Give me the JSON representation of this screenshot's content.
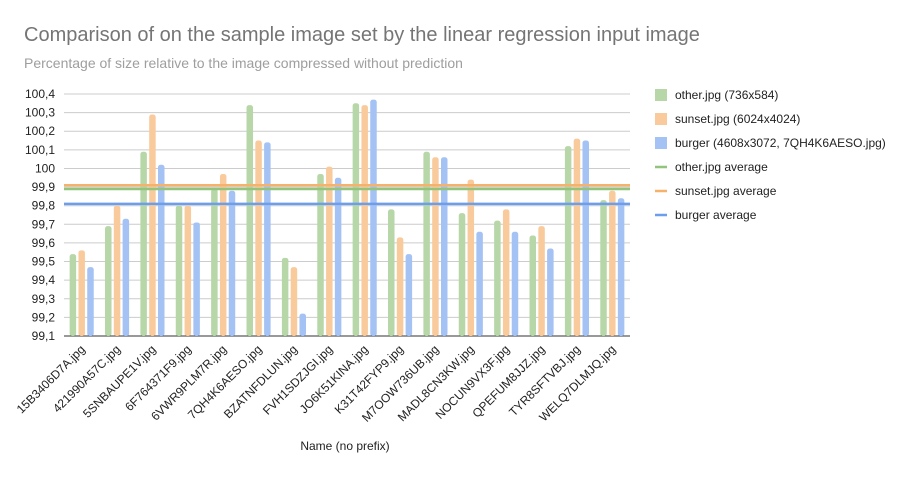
{
  "chart_data": {
    "type": "bar",
    "title": "Comparison of on the sample image set by the linear regression input image",
    "subtitle": "Percentage of size relative to the image compressed without prediction",
    "xlabel": "Name (no prefix)",
    "ylabel": "",
    "ylim": [
      99.1,
      100.4
    ],
    "yticks": [
      "99,1",
      "99,2",
      "99,3",
      "99,4",
      "99,5",
      "99,6",
      "99,7",
      "99,8",
      "99,9",
      "100",
      "100,1",
      "100,2",
      "100,3",
      "100,4"
    ],
    "grid": true,
    "legend_position": "right",
    "categories": [
      "15B3406D7A.jpg",
      "421990A57C.jpg",
      "5SNBAUPE1V.jpg",
      "6F764371F9.jpg",
      "6VWR9PLM7R.jpg",
      "7QH4K6AESO.jpg",
      "BZATNFDLUN.jpg",
      "FVH1SDZJGI.jpg",
      "JO6K51KINA.jpg",
      "K31T42FYP9.jpg",
      "M7OOW736UB.jpg",
      "MADL8CN3KW.jpg",
      "NOCUN9VX3F.jpg",
      "QPEFUM8JJZ.jpg",
      "TYR8SFTVBJ.jpg",
      "WELQ7DLMJQ.jpg"
    ],
    "series": [
      {
        "name": "other.jpg (736x584)",
        "color": "#b7d7a8",
        "values": [
          99.54,
          99.69,
          100.09,
          99.8,
          99.89,
          100.34,
          99.52,
          99.97,
          100.35,
          99.78,
          100.09,
          99.76,
          99.72,
          99.64,
          100.12,
          99.83
        ]
      },
      {
        "name": "sunset.jpg (6024x4024)",
        "color": "#f9cb9c",
        "values": [
          99.56,
          99.8,
          100.29,
          99.8,
          99.97,
          100.15,
          99.47,
          100.01,
          100.34,
          99.63,
          100.06,
          99.94,
          99.78,
          99.69,
          100.16,
          99.88
        ]
      },
      {
        "name": "burger (4608x3072, 7QH4K6AESO.jpg)",
        "color": "#a4c2f4",
        "values": [
          99.47,
          99.73,
          100.02,
          99.71,
          99.88,
          100.14,
          99.22,
          99.95,
          100.37,
          99.54,
          100.06,
          99.66,
          99.66,
          99.57,
          100.15,
          99.84
        ]
      }
    ],
    "averages": [
      {
        "name": "other.jpg average",
        "color": "#93c47d",
        "value": 99.89
      },
      {
        "name": "sunset.jpg average",
        "color": "#f6b26b",
        "value": 99.91
      },
      {
        "name": "burger average",
        "color": "#6d9eeb",
        "value": 99.81
      }
    ]
  }
}
